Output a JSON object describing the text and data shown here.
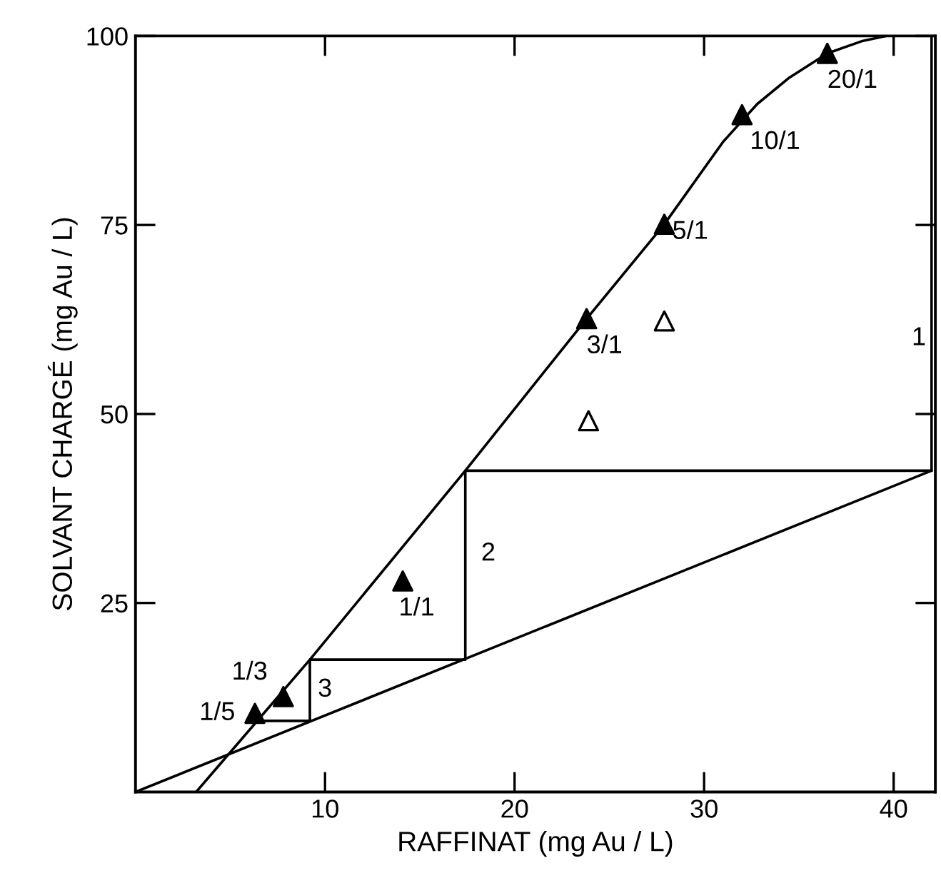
{
  "chart_data": {
    "type": "scatter",
    "xlabel": "RAFFINAT (mg Au / L)",
    "ylabel": "SOLVANT CHARGÉ (mg Au / L)",
    "xlim": [
      0,
      42.2
    ],
    "xticks": [
      10,
      20,
      30,
      40
    ],
    "ylim": [
      0,
      100
    ],
    "yticks": [
      25,
      50,
      75,
      100
    ],
    "grid": false,
    "series": [
      {
        "type": "line",
        "color": "#000000",
        "marker": "none",
        "x": [
          3.2,
          9.2,
          17.4,
          23.8,
          27.9,
          31.0,
          32.8,
          34.5,
          36.5,
          38.3,
          39.6
        ],
        "values": [
          0,
          17.5,
          42.5,
          62.6,
          75.1,
          86,
          91,
          94.5,
          97.7,
          99.3,
          100
        ]
      },
      {
        "type": "line",
        "color": "#000000",
        "marker": "none",
        "x": [
          0,
          42.0
        ],
        "values": [
          0,
          42.5
        ]
      },
      {
        "type": "line",
        "color": "#000000",
        "marker": "none",
        "x": [
          6.3,
          9.2,
          9.2,
          17.4,
          17.4,
          42.0,
          42.0
        ],
        "values": [
          9.4,
          9.4,
          17.5,
          17.5,
          42.5,
          42.5,
          100
        ]
      },
      {
        "color": "#000000",
        "marker": "triangle",
        "x": [
          6.3,
          7.8,
          14.1,
          23.8,
          27.9,
          32.0,
          36.5
        ],
        "values": [
          10.4,
          12.6,
          27.9,
          62.6,
          75.1,
          89.6,
          97.7
        ]
      },
      {
        "color": "#ffffff",
        "marker": "triangle",
        "x": [
          23.9,
          27.9
        ],
        "values": [
          49.1,
          62.3
        ]
      }
    ],
    "annotations": [
      {
        "text": "1/5",
        "x": 6.3,
        "y": 10.4
      },
      {
        "text": "1/3",
        "x": 7.8,
        "y": 12.6
      },
      {
        "text": "1/1",
        "x": 14.1,
        "y": 27.9
      },
      {
        "text": "3/1",
        "x": 23.8,
        "y": 62.6
      },
      {
        "text": "5/1",
        "x": 27.9,
        "y": 75.1
      },
      {
        "text": "10/1",
        "x": 32.0,
        "y": 89.6
      },
      {
        "text": "20/1",
        "x": 36.5,
        "y": 97.7
      },
      {
        "text": "3",
        "x": 9.2,
        "y": 13.5
      },
      {
        "text": "2",
        "x": 17.4,
        "y": 31.5
      },
      {
        "text": "1",
        "x": 42.0,
        "y": 60
      }
    ]
  }
}
